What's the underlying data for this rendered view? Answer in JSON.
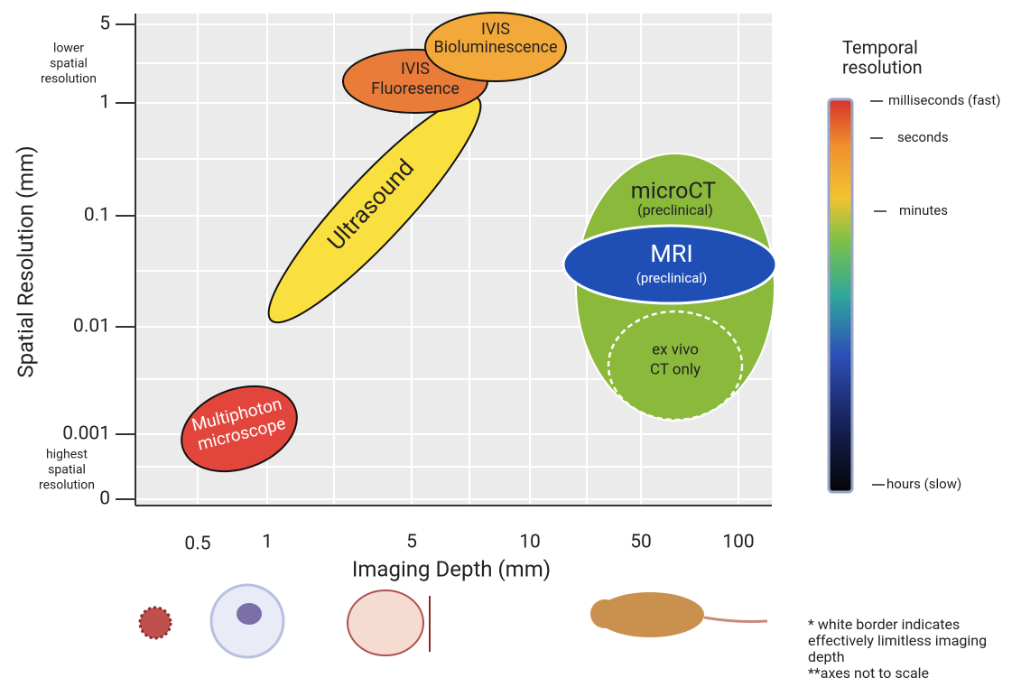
{
  "axes": {
    "x_label": "Imaging Depth (mm)",
    "y_label": "Spatial Resolution (mm)",
    "x_ticks": [
      "0.5",
      "1",
      "5",
      "10",
      "50",
      "100"
    ],
    "y_ticks": [
      "5",
      "1",
      "0.1",
      "0.01",
      "0.001",
      "0"
    ]
  },
  "y_notes": {
    "top": [
      "lower",
      "spatial",
      "resolution"
    ],
    "bottom": [
      "highest",
      "spatial",
      "resolution"
    ]
  },
  "regions": {
    "ivis_bio": [
      "IVIS",
      "Bioluminescence"
    ],
    "ivis_fluor": [
      "IVIS",
      "Fluoresence"
    ],
    "ultrasound": "Ultrasound",
    "multiphoton": [
      "Multiphoton",
      "microscope"
    ],
    "microct": {
      "name": "microCT",
      "note": "(preclinical)"
    },
    "mri": {
      "name": "MRI",
      "note": "(preclinical)"
    },
    "ex_vivo": [
      "ex vivo",
      "CT only"
    ]
  },
  "temporal_scale": {
    "title": [
      "Temporal",
      "resolution"
    ],
    "levels": [
      "milliseconds (fast)",
      "seconds",
      "minutes",
      "hours (slow)"
    ]
  },
  "footnotes": [
    "* white border indicates",
    "effectively limitless imaging",
    "depth",
    "**axes not to scale"
  ]
}
